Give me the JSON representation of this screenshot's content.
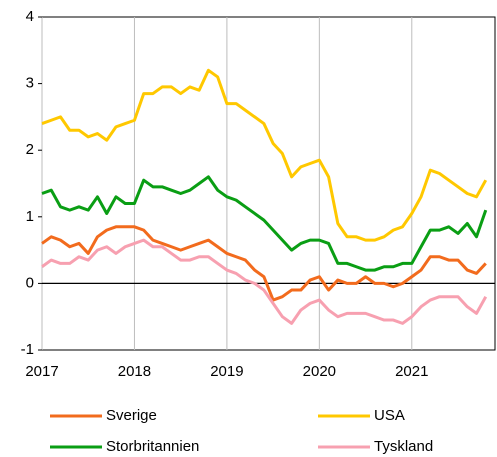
{
  "chart_data": {
    "type": "line",
    "x": [
      2017.0,
      2017.1,
      2017.2,
      2017.3,
      2017.4,
      2017.5,
      2017.6,
      2017.7,
      2017.8,
      2017.9,
      2018.0,
      2018.1,
      2018.2,
      2018.3,
      2018.4,
      2018.5,
      2018.6,
      2018.7,
      2018.8,
      2018.9,
      2019.0,
      2019.1,
      2019.2,
      2019.3,
      2019.4,
      2019.5,
      2019.6,
      2019.7,
      2019.8,
      2019.9,
      2020.0,
      2020.1,
      2020.2,
      2020.3,
      2020.4,
      2020.5,
      2020.6,
      2020.7,
      2020.8,
      2020.9,
      2021.0,
      2021.1,
      2021.2,
      2021.3,
      2021.4,
      2021.5,
      2021.6,
      2021.7,
      2021.8
    ],
    "series": [
      {
        "name": "Sverige",
        "color": "#f26b1d",
        "values": [
          0.6,
          0.7,
          0.65,
          0.55,
          0.6,
          0.45,
          0.7,
          0.8,
          0.85,
          0.85,
          0.85,
          0.8,
          0.65,
          0.6,
          0.55,
          0.5,
          0.55,
          0.6,
          0.65,
          0.55,
          0.45,
          0.4,
          0.35,
          0.2,
          0.1,
          -0.25,
          -0.2,
          -0.1,
          -0.1,
          0.05,
          0.1,
          -0.1,
          0.05,
          0.0,
          0.0,
          0.1,
          0.0,
          0.0,
          -0.05,
          0.0,
          0.1,
          0.2,
          0.4,
          0.4,
          0.35,
          0.35,
          0.2,
          0.15,
          0.3
        ]
      },
      {
        "name": "USA",
        "color": "#ffc800",
        "values": [
          2.4,
          2.45,
          2.5,
          2.3,
          2.3,
          2.2,
          2.25,
          2.15,
          2.35,
          2.4,
          2.45,
          2.85,
          2.85,
          2.95,
          2.95,
          2.85,
          2.95,
          2.9,
          3.2,
          3.1,
          2.7,
          2.7,
          2.6,
          2.5,
          2.4,
          2.1,
          1.95,
          1.6,
          1.75,
          1.8,
          1.85,
          1.6,
          0.9,
          0.7,
          0.7,
          0.65,
          0.65,
          0.7,
          0.8,
          0.85,
          1.05,
          1.3,
          1.7,
          1.65,
          1.55,
          1.45,
          1.35,
          1.3,
          1.55
        ]
      },
      {
        "name": "Storbritannien",
        "color": "#0a9e14",
        "values": [
          1.35,
          1.4,
          1.15,
          1.1,
          1.15,
          1.1,
          1.3,
          1.05,
          1.3,
          1.2,
          1.2,
          1.55,
          1.45,
          1.45,
          1.4,
          1.35,
          1.4,
          1.5,
          1.6,
          1.4,
          1.3,
          1.25,
          1.15,
          1.05,
          0.95,
          0.8,
          0.65,
          0.5,
          0.6,
          0.65,
          0.65,
          0.6,
          0.3,
          0.3,
          0.25,
          0.2,
          0.2,
          0.25,
          0.25,
          0.3,
          0.3,
          0.55,
          0.8,
          0.8,
          0.85,
          0.75,
          0.9,
          0.7,
          1.1
        ]
      },
      {
        "name": "Tyskland",
        "color": "#f7a0b0",
        "values": [
          0.25,
          0.35,
          0.3,
          0.3,
          0.4,
          0.35,
          0.5,
          0.55,
          0.45,
          0.55,
          0.6,
          0.65,
          0.55,
          0.55,
          0.45,
          0.35,
          0.35,
          0.4,
          0.4,
          0.3,
          0.2,
          0.15,
          0.05,
          0.0,
          -0.1,
          -0.3,
          -0.5,
          -0.6,
          -0.4,
          -0.3,
          -0.25,
          -0.4,
          -0.5,
          -0.45,
          -0.45,
          -0.45,
          -0.5,
          -0.55,
          -0.55,
          -0.6,
          -0.5,
          -0.35,
          -0.25,
          -0.2,
          -0.2,
          -0.2,
          -0.35,
          -0.45,
          -0.2
        ]
      }
    ],
    "xlim": [
      2017,
      2021.9
    ],
    "xticks": [
      2017,
      2018,
      2019,
      2020,
      2021
    ],
    "ylim": [
      -1,
      4
    ],
    "yticks": [
      -1,
      0,
      1,
      2,
      3,
      4
    ]
  }
}
